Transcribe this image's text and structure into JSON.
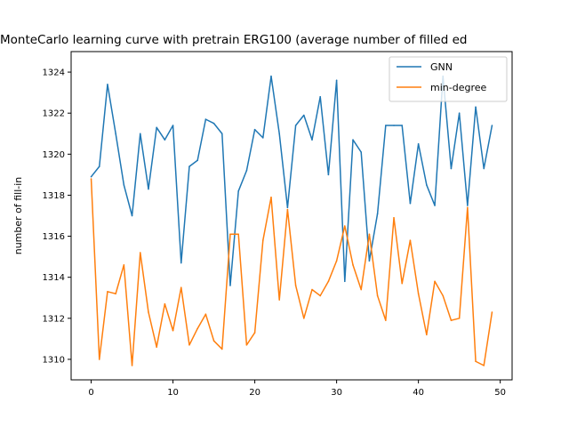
{
  "chart_data": {
    "type": "line",
    "title": "MonteCarlo learning curve with pretrain ERG100 (average number of filled ed",
    "xlabel": "",
    "ylabel": "number of fill-in",
    "xlim": [
      -2.45,
      51.45
    ],
    "ylim": [
      1309.0,
      1325.0
    ],
    "xticks": [
      0,
      10,
      20,
      30,
      40,
      50
    ],
    "yticks": [
      1310,
      1312,
      1314,
      1316,
      1318,
      1320,
      1322,
      1324
    ],
    "grid": false,
    "legend_position": "top-right",
    "x": [
      0,
      1,
      2,
      3,
      4,
      5,
      6,
      7,
      8,
      9,
      10,
      11,
      12,
      13,
      14,
      15,
      16,
      17,
      18,
      19,
      20,
      21,
      22,
      23,
      24,
      25,
      26,
      27,
      28,
      29,
      30,
      31,
      32,
      33,
      34,
      35,
      36,
      37,
      38,
      39,
      40,
      41,
      42,
      43,
      44,
      45,
      46,
      47,
      48,
      49
    ],
    "series": [
      {
        "name": "GNN",
        "color": "#1f77b4",
        "values": [
          1318.9,
          1319.4,
          1323.4,
          1321.0,
          1318.5,
          1317.0,
          1321.0,
          1318.3,
          1321.3,
          1320.7,
          1321.4,
          1314.7,
          1319.4,
          1319.7,
          1321.7,
          1321.5,
          1321.0,
          1313.6,
          1318.2,
          1319.2,
          1321.2,
          1320.8,
          1323.8,
          1321.0,
          1317.4,
          1321.4,
          1321.9,
          1320.7,
          1322.8,
          1319.0,
          1323.6,
          1313.8,
          1320.7,
          1320.1,
          1314.8,
          1317.1,
          1321.4,
          1321.4,
          1321.4,
          1317.6,
          1320.5,
          1318.5,
          1317.5,
          1323.8,
          1319.3,
          1322.0,
          1317.5,
          1322.3,
          1319.3,
          1321.4
        ]
      },
      {
        "name": "min-degree",
        "color": "#ff7f0e",
        "values": [
          1318.8,
          1310.0,
          1313.3,
          1313.2,
          1314.6,
          1309.7,
          1315.2,
          1312.3,
          1310.6,
          1312.7,
          1311.4,
          1313.5,
          1310.7,
          1311.5,
          1312.2,
          1310.9,
          1310.5,
          1316.1,
          1316.1,
          1310.7,
          1311.3,
          1315.8,
          1317.9,
          1312.9,
          1317.3,
          1313.6,
          1312.0,
          1313.4,
          1313.1,
          1313.8,
          1314.8,
          1316.5,
          1314.6,
          1313.4,
          1316.1,
          1313.1,
          1311.9,
          1316.9,
          1313.7,
          1315.8,
          1313.2,
          1311.2,
          1313.8,
          1313.1,
          1311.9,
          1312.0,
          1317.4,
          1309.9,
          1309.7,
          1312.3
        ]
      }
    ]
  }
}
